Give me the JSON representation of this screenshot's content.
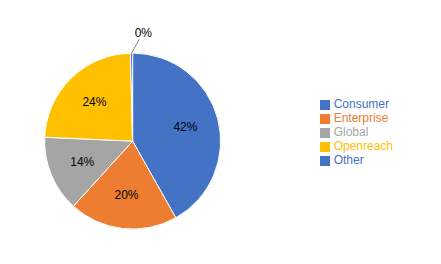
{
  "chart_data": {
    "type": "pie",
    "categories": [
      "Consumer",
      "Enterprise",
      "Global",
      "Openreach",
      "Other"
    ],
    "values": [
      42,
      20,
      14,
      24,
      0.4
    ],
    "value_labels": [
      "42%",
      "20%",
      "14%",
      "24%",
      "0%"
    ],
    "colors": [
      "#4472C4",
      "#ED7D31",
      "#A5A5A5",
      "#FFC000",
      "#4472C4"
    ],
    "data_labels": true,
    "legend": "right"
  }
}
